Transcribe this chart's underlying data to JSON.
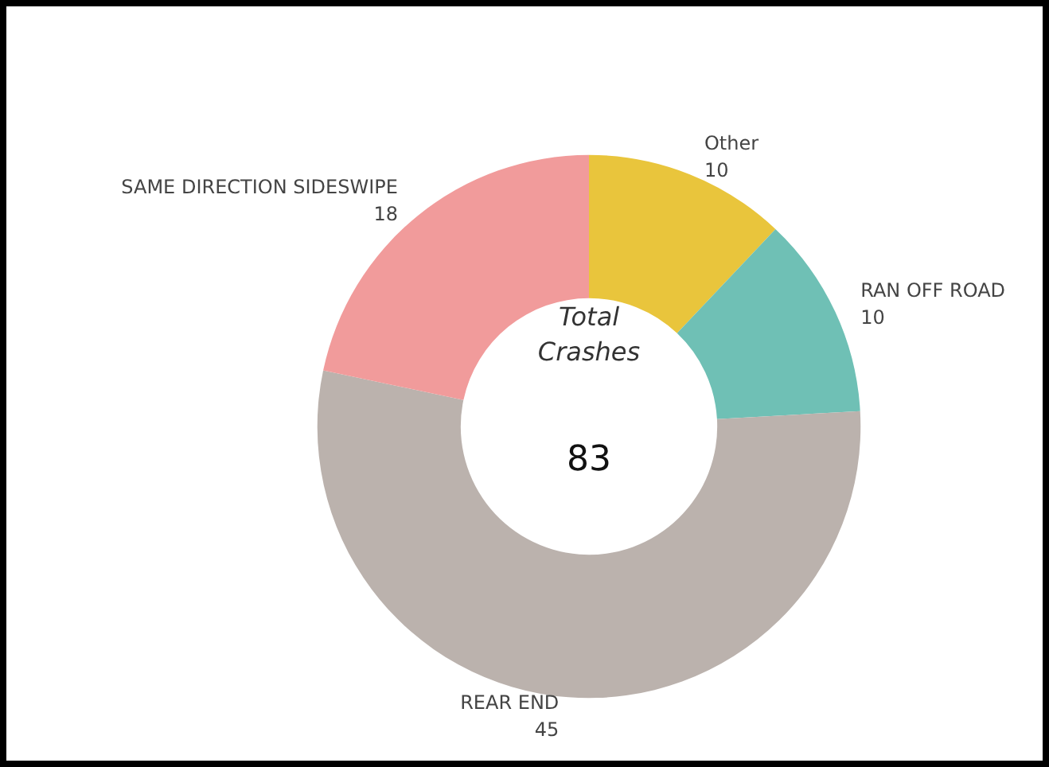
{
  "chart_data": {
    "type": "donut",
    "categories": [
      "Other",
      "RAN OFF ROAD",
      "REAR END",
      "SAME DIRECTION SIDESWIPE"
    ],
    "values": [
      10,
      10,
      45,
      18
    ],
    "colors": [
      "#e9c53c",
      "#6fc0b5",
      "#bbb2ad",
      "#f19b9b"
    ],
    "data_labels": true,
    "legend": false,
    "annotations": [
      "Total\nCrashes",
      "83"
    ]
  }
}
